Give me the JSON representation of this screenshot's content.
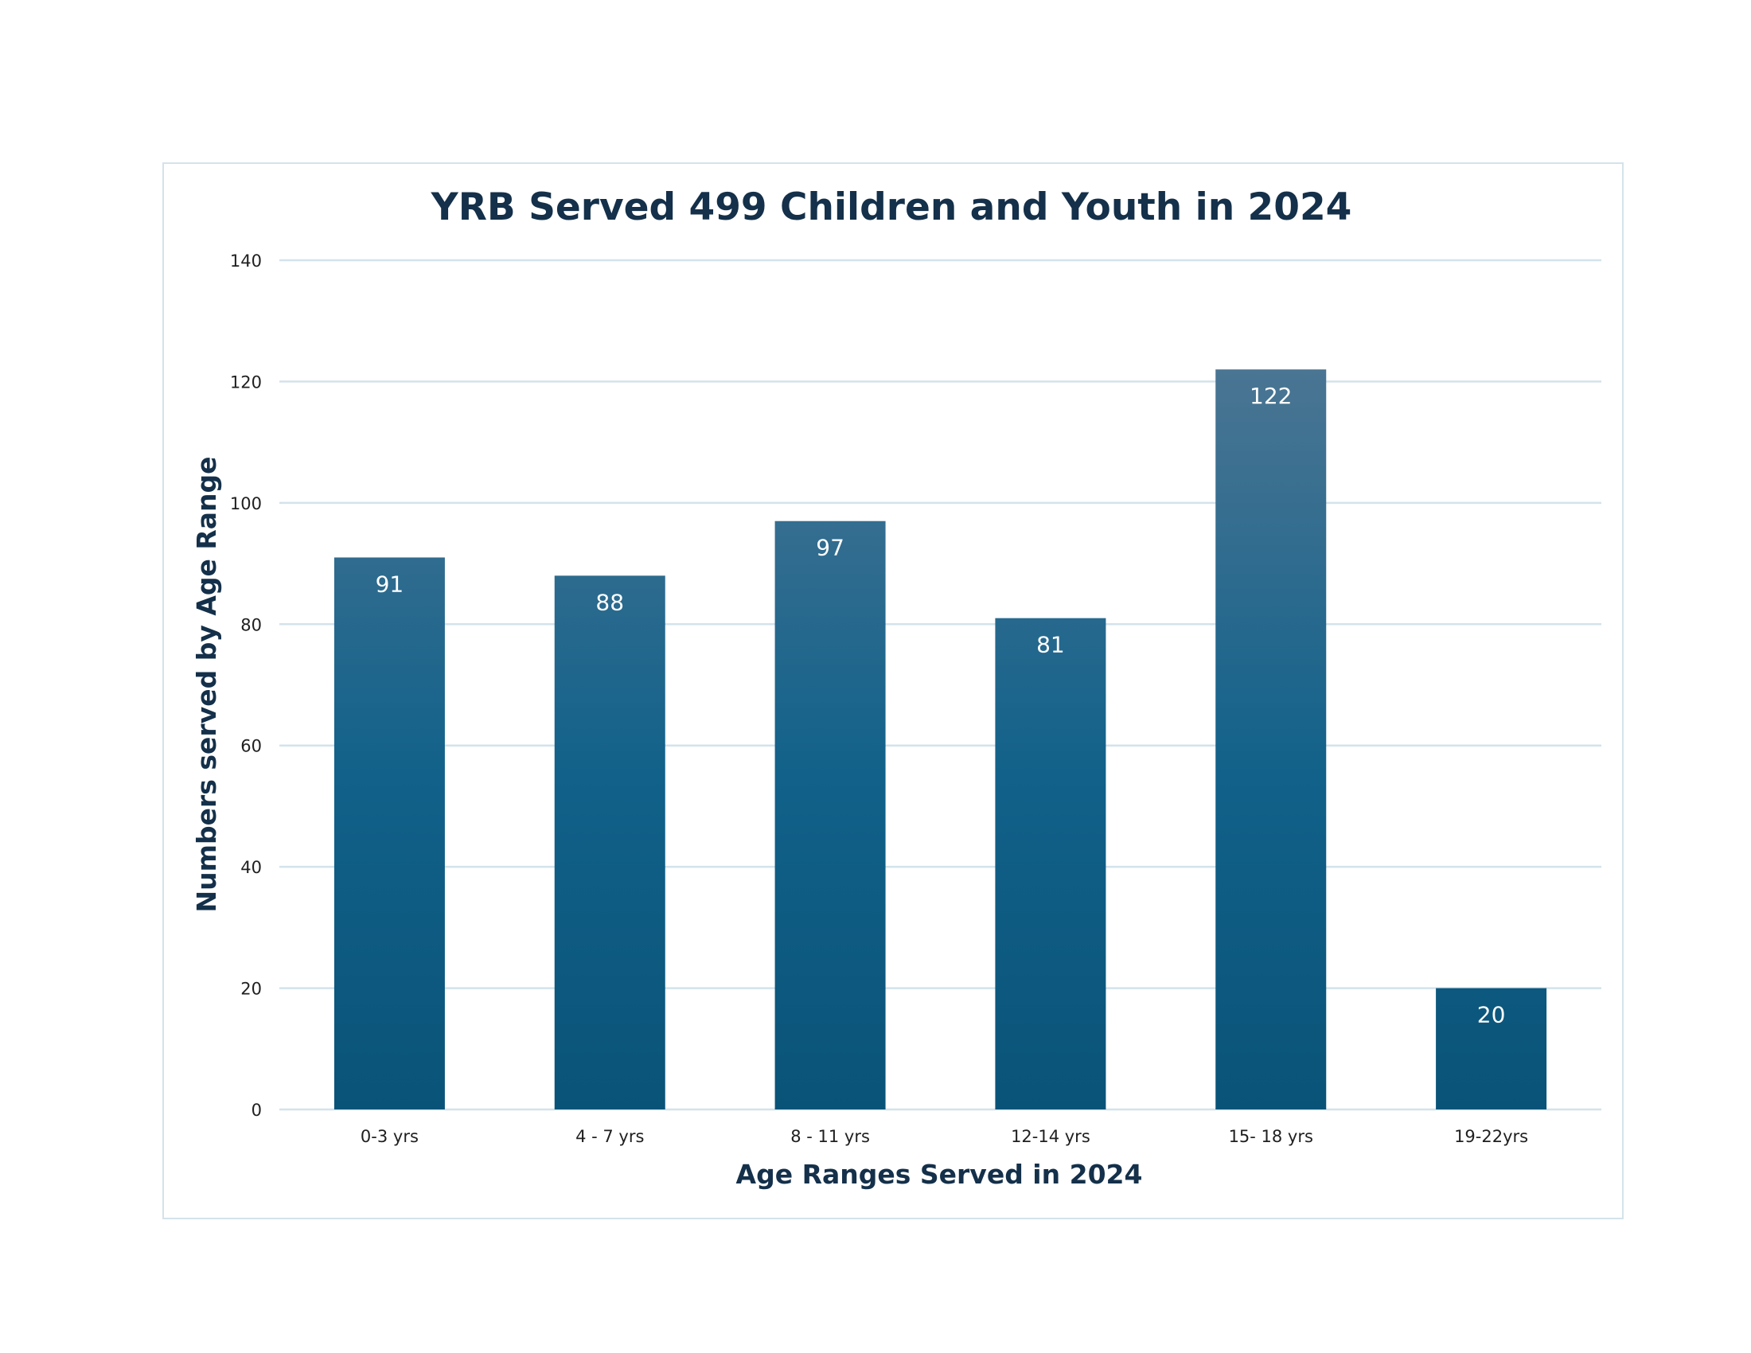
{
  "chart_data": {
    "type": "bar",
    "title": "YRB Served 499 Children and Youth in 2024",
    "xlabel": "Age Ranges Served in 2024",
    "ylabel": "Numbers served by Age Range",
    "categories": [
      "0-3 yrs",
      "4 - 7 yrs",
      "8 - 11 yrs",
      "12-14 yrs",
      "15- 18 yrs",
      "19-22yrs"
    ],
    "values": [
      91,
      88,
      97,
      81,
      122,
      20
    ],
    "ylim": [
      0,
      140
    ],
    "yticks": [
      0,
      20,
      40,
      60,
      80,
      100,
      120,
      140
    ],
    "grid": true,
    "data_labels": true,
    "colors": {
      "bar_top": "#4a7593",
      "bar_mid": "#11618a",
      "bar_bottom": "#0a5378",
      "grid": "#d3e3ec",
      "frame": "#d4e3ea",
      "title": "#14304a"
    }
  }
}
